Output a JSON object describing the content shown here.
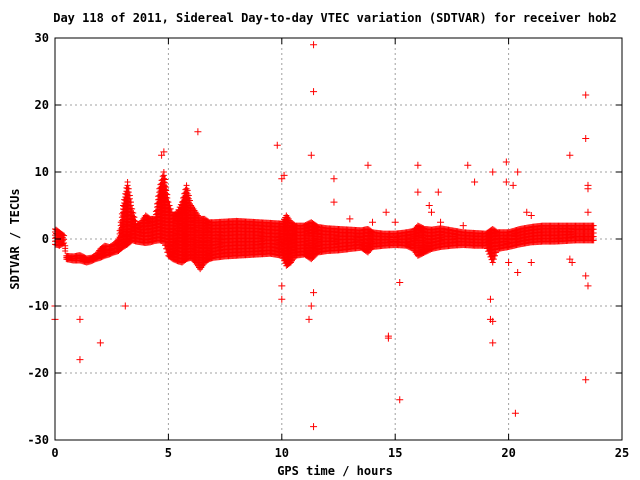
{
  "chart_data": {
    "type": "scatter",
    "title": "Day 118 of 2011, Sidereal Day-to-day VTEC variation (SDTVAR) for receiver hob2",
    "xlabel": "GPS time / hours",
    "ylabel": "SDTVAR / TECUs",
    "xlim": [
      0,
      25
    ],
    "ylim": [
      -30,
      30
    ],
    "x_ticks": [
      0,
      5,
      10,
      15,
      20,
      25
    ],
    "y_ticks": [
      -30,
      -20,
      -10,
      0,
      10,
      20,
      30
    ],
    "grid": true,
    "marker": "+",
    "series_color": "#ff0000",
    "series": [
      {
        "band": [
          [
            0.0,
            -0.8,
            1.5
          ],
          [
            0.2,
            -1.0,
            1.0
          ],
          [
            0.4,
            -0.6,
            0.5
          ],
          [
            0.5,
            -3.0,
            -2.5
          ],
          [
            0.8,
            -3.2,
            -2.6
          ],
          [
            1.1,
            -3.2,
            -2.4
          ],
          [
            1.4,
            -3.5,
            -2.9
          ],
          [
            1.6,
            -3.3,
            -2.8
          ],
          [
            1.8,
            -3.0,
            -2.4
          ],
          [
            2.0,
            -2.8,
            -1.5
          ],
          [
            2.2,
            -2.5,
            -1.0
          ],
          [
            2.4,
            -2.3,
            -1.2
          ],
          [
            2.6,
            -2.0,
            -0.8
          ],
          [
            2.8,
            -1.8,
            0.0
          ],
          [
            3.0,
            -1.2,
            5.0
          ],
          [
            3.2,
            -0.8,
            8.5
          ],
          [
            3.4,
            -0.2,
            4.5
          ],
          [
            3.6,
            -0.4,
            2.0
          ],
          [
            3.8,
            -0.5,
            2.5
          ],
          [
            4.0,
            -0.6,
            3.5
          ],
          [
            4.2,
            -0.5,
            3.0
          ],
          [
            4.4,
            -0.3,
            3.0
          ],
          [
            4.6,
            -0.2,
            7.5
          ],
          [
            4.8,
            -0.4,
            10.0
          ],
          [
            5.0,
            -2.5,
            5.5
          ],
          [
            5.2,
            -3.0,
            3.5
          ],
          [
            5.4,
            -3.3,
            4.0
          ],
          [
            5.6,
            -3.5,
            5.5
          ],
          [
            5.8,
            -3.0,
            8.0
          ],
          [
            6.0,
            -2.8,
            5.0
          ],
          [
            6.2,
            -3.5,
            4.0
          ],
          [
            6.4,
            -4.5,
            3.0
          ],
          [
            6.6,
            -3.5,
            3.0
          ],
          [
            6.8,
            -3.0,
            2.5
          ],
          [
            7.0,
            -2.8,
            2.5
          ],
          [
            7.5,
            -2.6,
            2.6
          ],
          [
            8.0,
            -2.5,
            2.7
          ],
          [
            8.5,
            -2.4,
            2.6
          ],
          [
            9.0,
            -2.3,
            2.5
          ],
          [
            9.5,
            -2.2,
            2.4
          ],
          [
            10.0,
            -2.5,
            2.3
          ],
          [
            10.2,
            -4.0,
            3.5
          ],
          [
            10.4,
            -3.5,
            2.5
          ],
          [
            10.6,
            -2.5,
            2.0
          ],
          [
            11.0,
            -2.3,
            2.0
          ],
          [
            11.3,
            -3.0,
            2.5
          ],
          [
            11.6,
            -2.0,
            1.8
          ],
          [
            12.0,
            -1.8,
            1.6
          ],
          [
            12.5,
            -1.7,
            1.5
          ],
          [
            13.0,
            -1.5,
            1.4
          ],
          [
            13.5,
            -1.3,
            1.3
          ],
          [
            13.8,
            -2.0,
            1.5
          ],
          [
            14.0,
            -1.2,
            1.0
          ],
          [
            14.5,
            -1.0,
            0.8
          ],
          [
            15.0,
            -0.9,
            0.8
          ],
          [
            15.5,
            -1.0,
            1.0
          ],
          [
            15.8,
            -1.5,
            1.2
          ],
          [
            16.0,
            -2.5,
            2.0
          ],
          [
            16.3,
            -2.0,
            1.5
          ],
          [
            16.6,
            -1.5,
            1.4
          ],
          [
            17.0,
            -1.2,
            1.6
          ],
          [
            17.5,
            -1.0,
            1.3
          ],
          [
            18.0,
            -0.9,
            1.0
          ],
          [
            18.5,
            -1.0,
            0.9
          ],
          [
            19.0,
            -1.0,
            0.8
          ],
          [
            19.3,
            -3.5,
            1.5
          ],
          [
            19.5,
            -1.5,
            1.0
          ],
          [
            20.0,
            -1.2,
            1.0
          ],
          [
            20.5,
            -0.8,
            1.5
          ],
          [
            21.0,
            -0.5,
            1.8
          ],
          [
            21.5,
            -0.4,
            2.0
          ],
          [
            22.0,
            -0.4,
            2.0
          ],
          [
            22.5,
            -0.3,
            2.0
          ],
          [
            23.0,
            -0.2,
            2.0
          ],
          [
            23.5,
            -0.2,
            2.0
          ],
          [
            23.8,
            -0.2,
            2.0
          ]
        ],
        "points": [
          [
            0.0,
            -10.0
          ],
          [
            0.0,
            -12.0
          ],
          [
            1.1,
            -12.0
          ],
          [
            1.1,
            -18.0
          ],
          [
            2.0,
            -15.5
          ],
          [
            3.1,
            -10.0
          ],
          [
            4.7,
            12.5
          ],
          [
            4.8,
            13.0
          ],
          [
            6.3,
            16.0
          ],
          [
            9.8,
            14.0
          ],
          [
            10.0,
            9.0
          ],
          [
            10.1,
            9.5
          ],
          [
            10.0,
            -7.0
          ],
          [
            10.0,
            -9.0
          ],
          [
            11.3,
            12.5
          ],
          [
            11.4,
            29.0
          ],
          [
            11.4,
            22.0
          ],
          [
            11.2,
            -12.0
          ],
          [
            11.3,
            -10.0
          ],
          [
            11.4,
            -8.0
          ],
          [
            11.4,
            -28.0
          ],
          [
            12.3,
            9.0
          ],
          [
            12.3,
            5.5
          ],
          [
            13.8,
            11.0
          ],
          [
            14.7,
            -14.5
          ],
          [
            14.7,
            -14.8
          ],
          [
            14.6,
            4.0
          ],
          [
            15.2,
            -24.0
          ],
          [
            15.2,
            -6.5
          ],
          [
            16.0,
            11.0
          ],
          [
            16.0,
            7.0
          ],
          [
            16.9,
            7.0
          ],
          [
            16.5,
            5.0
          ],
          [
            16.6,
            4.0
          ],
          [
            18.2,
            11.0
          ],
          [
            18.5,
            8.5
          ],
          [
            19.3,
            10.0
          ],
          [
            19.2,
            -12.0
          ],
          [
            19.3,
            -12.3
          ],
          [
            19.3,
            -15.5
          ],
          [
            19.2,
            -9.0
          ],
          [
            19.9,
            11.5
          ],
          [
            19.9,
            8.5
          ],
          [
            20.2,
            8.0
          ],
          [
            20.4,
            10.0
          ],
          [
            20.3,
            -26.0
          ],
          [
            20.4,
            -5.0
          ],
          [
            20.8,
            4.0
          ],
          [
            21.0,
            3.5
          ],
          [
            22.7,
            12.5
          ],
          [
            23.4,
            21.5
          ],
          [
            23.4,
            15.0
          ],
          [
            23.5,
            8.0
          ],
          [
            23.5,
            7.5
          ],
          [
            23.4,
            -21.0
          ],
          [
            23.4,
            -5.5
          ],
          [
            23.5,
            -7.0
          ],
          [
            23.5,
            4.0
          ],
          [
            22.7,
            -3.0
          ],
          [
            22.8,
            -3.5
          ],
          [
            13.0,
            3.0
          ],
          [
            14.0,
            2.5
          ],
          [
            15.0,
            2.5
          ],
          [
            17.0,
            2.5
          ],
          [
            18.0,
            2.0
          ],
          [
            20.0,
            -3.5
          ],
          [
            21.0,
            -3.5
          ]
        ]
      }
    ]
  }
}
